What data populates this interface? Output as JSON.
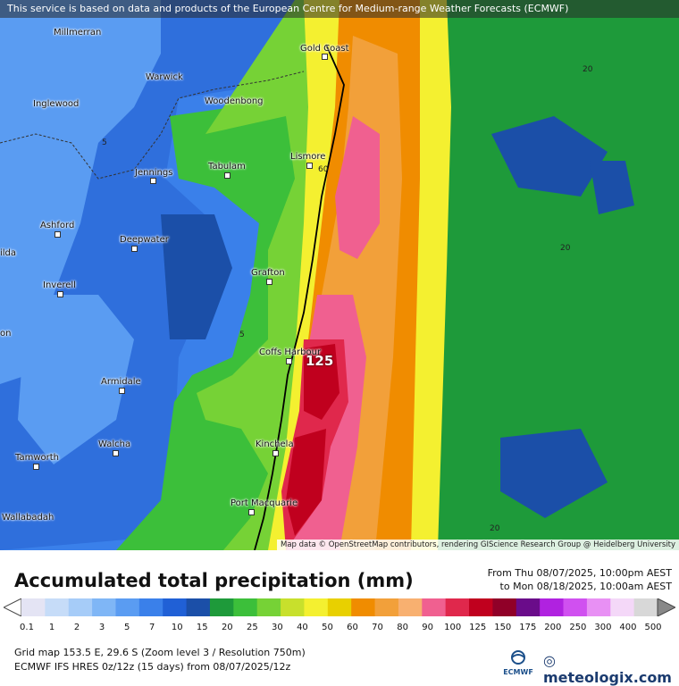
{
  "banner": "This service is based on data and products of the European Centre for Medium-range Weather Forecasts (ECMWF)",
  "attribution": "Map data © OpenStreetMap contributors, rendering GIScience Research Group @ Heidelberg University",
  "cities": [
    {
      "name": "Millmerran"
    },
    {
      "name": "Gold Coast"
    },
    {
      "name": "Warwick"
    },
    {
      "name": "Inglewood"
    },
    {
      "name": "Woodenbong"
    },
    {
      "name": "Lismore"
    },
    {
      "name": "Tabulam"
    },
    {
      "name": "Jennings"
    },
    {
      "name": "Ashford"
    },
    {
      "name": "Deepwater"
    },
    {
      "name": "Grafton"
    },
    {
      "name": "Inverell"
    },
    {
      "name": "Coffs Harbour"
    },
    {
      "name": "Armidale"
    },
    {
      "name": "Walcha"
    },
    {
      "name": "Kinchela"
    },
    {
      "name": "Tamworth"
    },
    {
      "name": "Port Macquarie"
    },
    {
      "name": "Wallabadah"
    },
    {
      "name": "ilda"
    },
    {
      "name": "on"
    }
  ],
  "contour_labels": [
    "20",
    "5",
    "60",
    "20",
    "5",
    "20",
    "20"
  ],
  "max_value": "125",
  "title": "Accumulated total precipitation (mm)",
  "period_from": "From Thu 08/07/2025, 10:00pm AEST",
  "period_to": "to Mon 08/18/2025, 10:00am AEST",
  "legend": {
    "labels": [
      "0.1",
      "1",
      "2",
      "3",
      "5",
      "7",
      "10",
      "15",
      "20",
      "25",
      "30",
      "40",
      "50",
      "60",
      "70",
      "80",
      "90",
      "100",
      "125",
      "150",
      "175",
      "200",
      "250",
      "300",
      "400",
      "500"
    ],
    "colors": [
      "#e4e4f4",
      "#c6dcf8",
      "#a6ccf8",
      "#7fb6f6",
      "#5a9cf2",
      "#3a80ea",
      "#2060d6",
      "#1b4fa8",
      "#1e9a3a",
      "#3cbf3a",
      "#76d236",
      "#c8e02c",
      "#f4f030",
      "#e8d000",
      "#f08c00",
      "#f2a03a",
      "#f8b070",
      "#f06090",
      "#e0284c",
      "#c0001e",
      "#900028",
      "#6a0c8a",
      "#b022e0",
      "#d050f0",
      "#e890f4",
      "#f4d8f8",
      "#d8d8d8"
    ]
  },
  "meta_line1": "Grid map 153.5 E, 29.6 S (Zoom level 3 / Resolution 750m)",
  "meta_line2": "ECMWF IFS HRES 0z/12z (15 days) from 08/07/2025/12z",
  "ecmwf_logo": "ECMWF",
  "brand": "meteologix.com",
  "colors": {
    "ocean_core": "#c0001e",
    "coast_line": "#000000"
  }
}
